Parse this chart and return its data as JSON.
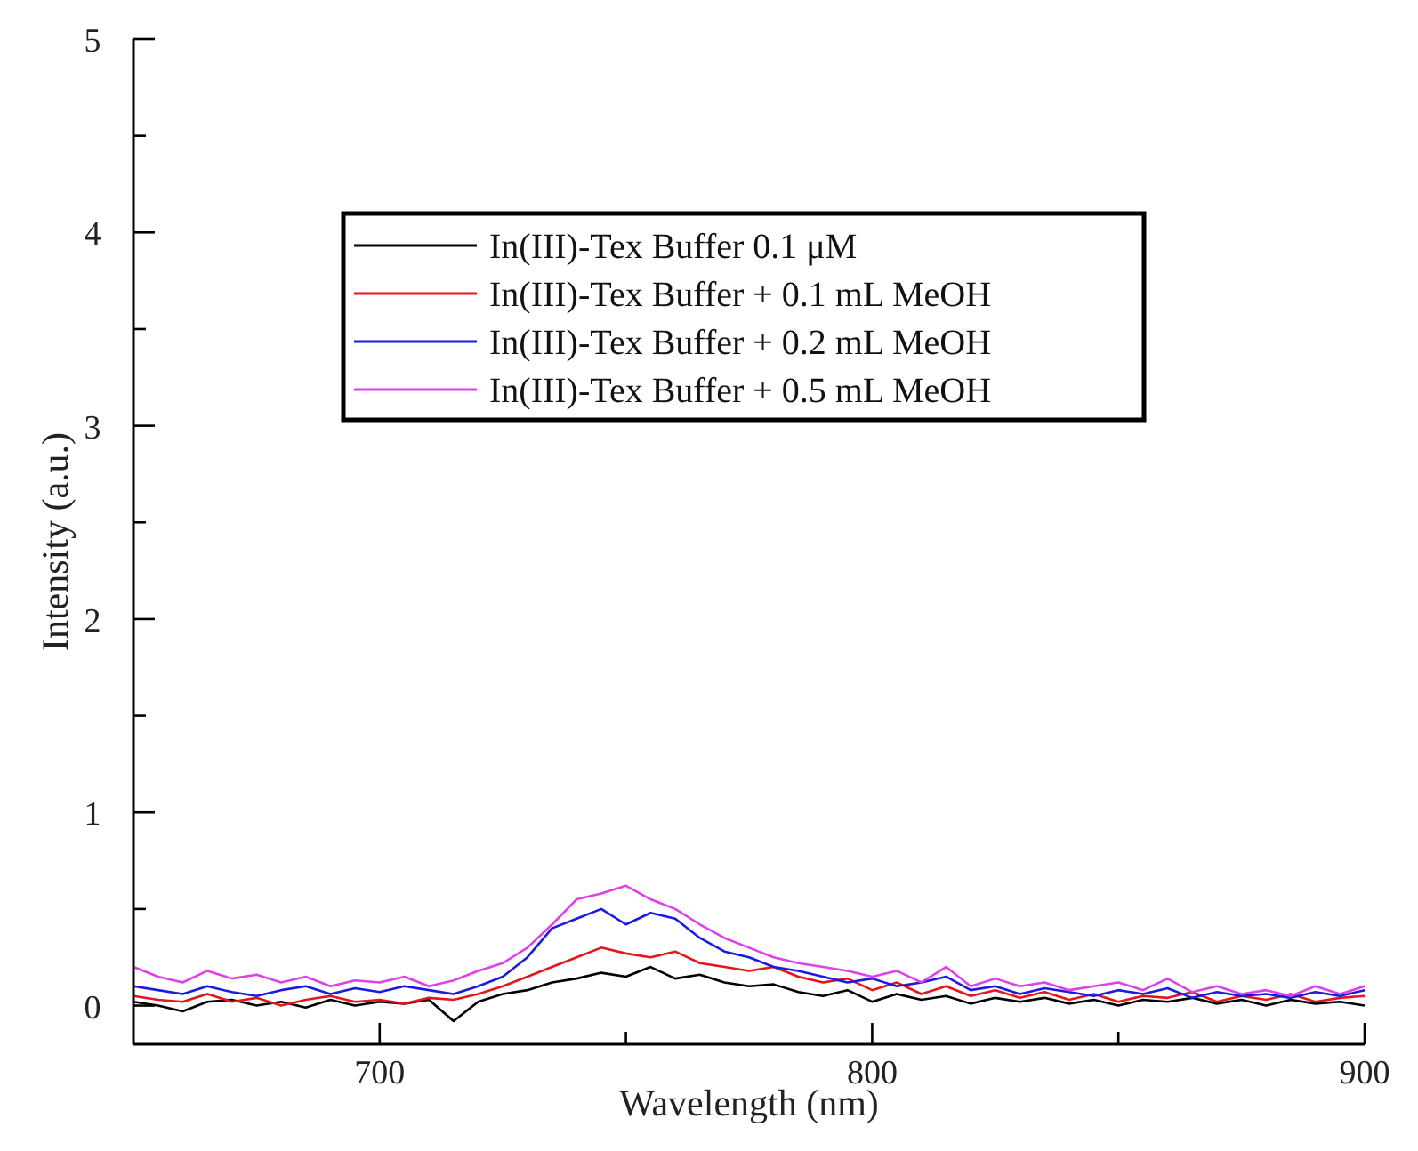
{
  "chart_data": {
    "type": "line",
    "xlabel": "Wavelength (nm)",
    "ylabel": "Intensity (a.u.)",
    "x": [
      650,
      655,
      660,
      665,
      670,
      675,
      680,
      685,
      690,
      695,
      700,
      705,
      710,
      715,
      720,
      725,
      730,
      735,
      740,
      745,
      750,
      755,
      760,
      765,
      770,
      775,
      780,
      785,
      790,
      795,
      800,
      805,
      810,
      815,
      820,
      825,
      830,
      835,
      840,
      845,
      850,
      855,
      860,
      865,
      870,
      875,
      880,
      885,
      890,
      895,
      900
    ],
    "series": [
      {
        "name": "In(III)-Tex Buffer 0.1 μM",
        "color": "#000000",
        "values": [
          0.02,
          0.0,
          -0.03,
          0.02,
          0.03,
          0.0,
          0.02,
          -0.01,
          0.03,
          0.0,
          0.02,
          0.01,
          0.03,
          -0.08,
          0.02,
          0.06,
          0.08,
          0.12,
          0.14,
          0.17,
          0.15,
          0.2,
          0.14,
          0.16,
          0.12,
          0.1,
          0.11,
          0.07,
          0.05,
          0.08,
          0.02,
          0.06,
          0.03,
          0.05,
          0.01,
          0.04,
          0.02,
          0.04,
          0.01,
          0.03,
          0.0,
          0.03,
          0.02,
          0.04,
          0.01,
          0.03,
          0.0,
          0.03,
          0.01,
          0.02,
          0.0
        ]
      },
      {
        "name": "In(III)-Tex Buffer + 0.1 mL MeOH",
        "color": "#e8141c",
        "values": [
          0.05,
          0.03,
          0.02,
          0.06,
          0.02,
          0.04,
          0.0,
          0.03,
          0.05,
          0.02,
          0.03,
          0.01,
          0.04,
          0.03,
          0.06,
          0.1,
          0.15,
          0.2,
          0.25,
          0.3,
          0.27,
          0.25,
          0.28,
          0.22,
          0.2,
          0.18,
          0.2,
          0.15,
          0.12,
          0.14,
          0.08,
          0.12,
          0.06,
          0.1,
          0.05,
          0.08,
          0.04,
          0.07,
          0.03,
          0.06,
          0.02,
          0.05,
          0.04,
          0.07,
          0.02,
          0.05,
          0.03,
          0.06,
          0.02,
          0.04,
          0.05
        ]
      },
      {
        "name": "In(III)-Tex Buffer + 0.2 mL MeOH",
        "color": "#1a1ae0",
        "values": [
          0.1,
          0.08,
          0.06,
          0.1,
          0.07,
          0.05,
          0.08,
          0.1,
          0.06,
          0.09,
          0.07,
          0.1,
          0.08,
          0.06,
          0.1,
          0.15,
          0.25,
          0.4,
          0.45,
          0.5,
          0.42,
          0.48,
          0.45,
          0.35,
          0.28,
          0.25,
          0.2,
          0.18,
          0.15,
          0.12,
          0.14,
          0.1,
          0.12,
          0.15,
          0.08,
          0.1,
          0.06,
          0.09,
          0.07,
          0.05,
          0.08,
          0.06,
          0.09,
          0.04,
          0.07,
          0.05,
          0.06,
          0.04,
          0.07,
          0.05,
          0.08
        ]
      },
      {
        "name": "In(III)-Tex Buffer + 0.5 mL MeOH",
        "color": "#e040e8",
        "values": [
          0.2,
          0.15,
          0.12,
          0.18,
          0.14,
          0.16,
          0.12,
          0.15,
          0.1,
          0.13,
          0.12,
          0.15,
          0.1,
          0.13,
          0.18,
          0.22,
          0.3,
          0.42,
          0.55,
          0.58,
          0.62,
          0.55,
          0.5,
          0.42,
          0.35,
          0.3,
          0.25,
          0.22,
          0.2,
          0.18,
          0.15,
          0.18,
          0.12,
          0.2,
          0.1,
          0.14,
          0.1,
          0.12,
          0.08,
          0.1,
          0.12,
          0.08,
          0.14,
          0.07,
          0.1,
          0.06,
          0.08,
          0.05,
          0.1,
          0.06,
          0.1
        ]
      }
    ],
    "xlim": [
      650,
      900
    ],
    "xticks": [
      700,
      {
        "value": 750,
        "label": null
      },
      800,
      {
        "value": 850,
        "label": null
      },
      900
    ],
    "ylim": [
      -0.2,
      5
    ],
    "yticks": [
      0,
      {
        "value": 0.5,
        "label": null
      },
      1,
      {
        "value": 1.5,
        "label": null
      },
      2,
      {
        "value": 2.5,
        "label": null
      },
      3,
      {
        "value": 3.5,
        "label": null
      },
      4,
      {
        "value": 4.5,
        "label": null
      },
      5
    ],
    "grid": false,
    "legend": "top",
    "line_style": "solid",
    "marker": "none"
  }
}
